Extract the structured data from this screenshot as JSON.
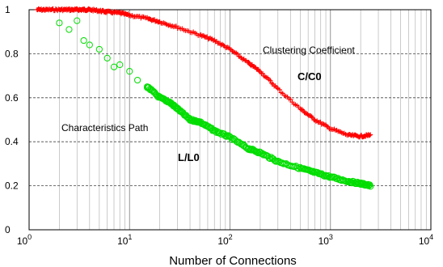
{
  "chart_data": {
    "type": "scatter",
    "title": "",
    "xlabel": "Number of Connections",
    "ylabel": "",
    "xscale": "log",
    "xlim": [
      1,
      10000
    ],
    "ylim": [
      0,
      1
    ],
    "x_ticks": [
      {
        "value": 1,
        "base": "10",
        "exp": "0"
      },
      {
        "value": 10,
        "base": "10",
        "exp": "1"
      },
      {
        "value": 100,
        "base": "10",
        "exp": "2"
      },
      {
        "value": 1000,
        "base": "10",
        "exp": "3"
      },
      {
        "value": 10000,
        "base": "10",
        "exp": "4"
      }
    ],
    "y_ticks": [
      "0",
      "0.2",
      "0.4",
      "0.6",
      "0.8",
      "1"
    ],
    "grid": {
      "horizontal": "dashed",
      "vertical": "log-minor"
    },
    "series": [
      {
        "marker": "plus",
        "color": "#ff0000",
        "x": [
          1.2,
          1.5,
          2,
          2.5,
          3,
          3.5,
          4,
          5,
          6,
          8,
          10,
          15,
          20,
          30,
          50,
          70,
          100,
          150,
          200,
          300,
          500,
          700,
          1000,
          1500,
          2000,
          2500
        ],
        "y": [
          1.0,
          1.0,
          1.0,
          1.0,
          1.0,
          1.0,
          1.0,
          0.995,
          0.99,
          0.985,
          0.975,
          0.96,
          0.945,
          0.92,
          0.885,
          0.86,
          0.82,
          0.76,
          0.72,
          0.64,
          0.55,
          0.5,
          0.46,
          0.43,
          0.425,
          0.43
        ]
      },
      {
        "marker": "circle",
        "color": "#00dd00",
        "x": [
          2,
          2.5,
          3,
          3.5,
          4,
          5,
          6,
          7,
          8,
          10,
          12,
          15,
          20,
          25,
          30,
          40,
          50,
          70,
          100,
          150,
          200,
          300,
          500,
          700,
          1000,
          1500,
          2000,
          2500
        ],
        "y": [
          0.94,
          0.91,
          0.95,
          0.86,
          0.84,
          0.82,
          0.78,
          0.74,
          0.75,
          0.72,
          0.68,
          0.65,
          0.6,
          0.58,
          0.55,
          0.5,
          0.49,
          0.45,
          0.42,
          0.37,
          0.35,
          0.31,
          0.28,
          0.26,
          0.24,
          0.22,
          0.21,
          0.2
        ]
      }
    ],
    "annotations": [
      {
        "text": "Clustering Coefficient",
        "weight": "normal"
      },
      {
        "text": "C/C0",
        "weight": "bold"
      },
      {
        "text": "Characteristics Path",
        "weight": "normal"
      },
      {
        "text": "L/L0",
        "weight": "bold"
      }
    ]
  }
}
